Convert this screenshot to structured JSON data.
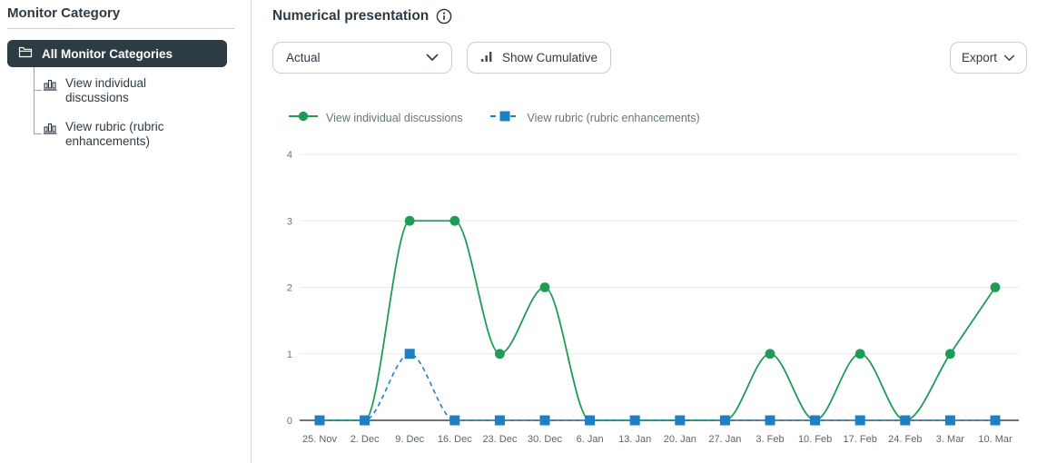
{
  "sidebar": {
    "title": "Monitor Category",
    "root_item": {
      "label": "All Monitor Categories",
      "icon": "folder-open-icon"
    },
    "items": [
      {
        "label": "View individual discussions",
        "icon": "bar-chart-icon"
      },
      {
        "label": "View rubric (rubric enhancements)",
        "icon": "bar-chart-icon"
      }
    ]
  },
  "header": {
    "title": "Numerical presentation",
    "info_icon": "info-icon"
  },
  "toolbar": {
    "mode_select_value": "Actual",
    "show_cumulative_label": "Show Cumulative",
    "export_label": "Export"
  },
  "chart_data": {
    "type": "line",
    "title": "",
    "xlabel": "",
    "ylabel": "",
    "x": [
      "25. Nov",
      "2. Dec",
      "9. Dec",
      "16. Dec",
      "23. Dec",
      "30. Dec",
      "6. Jan",
      "13. Jan",
      "20. Jan",
      "27. Jan",
      "3. Feb",
      "10. Feb",
      "17. Feb",
      "24. Feb",
      "3. Mar",
      "10. Mar"
    ],
    "series": [
      {
        "name": "View individual discussions",
        "color": "#1E9C57",
        "marker": "circle",
        "line_style": "solid",
        "values": [
          0,
          0,
          3,
          3,
          1,
          2,
          0,
          0,
          0,
          0,
          1,
          0,
          1,
          0,
          1,
          2
        ]
      },
      {
        "name": "View rubric (rubric enhancements)",
        "color": "#1E7FC2",
        "marker": "square",
        "line_style": "dashed",
        "values": [
          0,
          0,
          1,
          0,
          0,
          0,
          0,
          0,
          0,
          0,
          0,
          0,
          0,
          0,
          0,
          0
        ]
      }
    ],
    "ylim": [
      0,
      4
    ],
    "yticks": [
      0,
      1,
      2,
      3,
      4
    ],
    "grid": true,
    "legend_position": "top"
  },
  "colors": {
    "text_dark": "#2D3B45",
    "border": "#C7CDD1",
    "gridline": "#E8EAEC",
    "axis_line": "#18222B",
    "series_green": "#1E9C57",
    "series_blue": "#1E7FC2",
    "selected_bg": "#2D3B45"
  }
}
